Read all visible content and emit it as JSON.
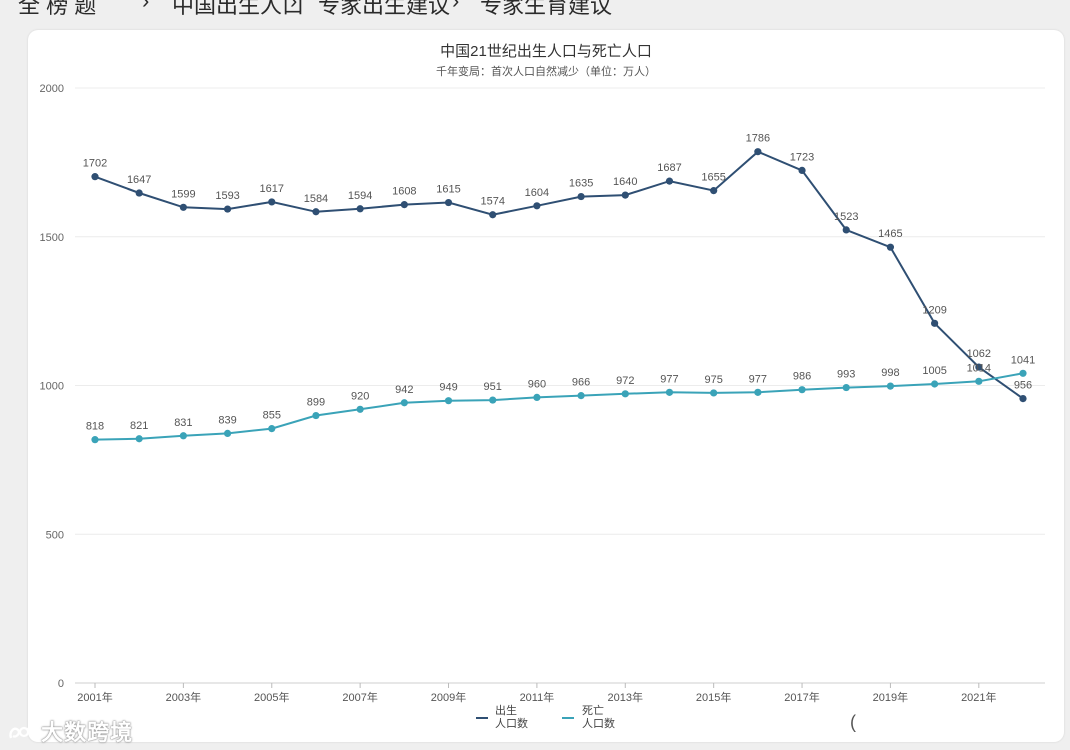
{
  "breadcrumb": {
    "items": [
      {
        "label": "全 榜 题",
        "sep": "›"
      },
      {
        "label": "中国出生人口",
        "sep": "›"
      },
      {
        "label": "专家出生建议",
        "sep": "›"
      },
      {
        "label": "专家生育建议",
        "sep": ""
      }
    ]
  },
  "chart_data": {
    "type": "line",
    "title": "中国21世纪出生人口与死亡人口",
    "subtitle": "千年变局：首次人口自然减少（单位：万人）",
    "x": [
      2001,
      2002,
      2003,
      2004,
      2005,
      2006,
      2007,
      2008,
      2009,
      2010,
      2011,
      2012,
      2013,
      2014,
      2015,
      2016,
      2017,
      2018,
      2019,
      2020,
      2021,
      2022
    ],
    "x_tick_labels": [
      "2001年",
      "2003年",
      "2005年",
      "2007年",
      "2009年",
      "2011年",
      "2013年",
      "2015年",
      "2017年",
      "2019年",
      "2021年"
    ],
    "y_ticks": [
      0,
      500,
      1000,
      1500,
      2000
    ],
    "ylim": [
      0,
      2000
    ],
    "grid": true,
    "legend_position": "bottom-center",
    "series": [
      {
        "name": "出生人口数",
        "legend_line1": "出生",
        "legend_line2": "人口数",
        "color": "#2f4f73",
        "values": [
          1702,
          1647,
          1599,
          1593,
          1617,
          1584,
          1594,
          1608,
          1615,
          1574,
          1604,
          1635,
          1640,
          1687,
          1655,
          1786,
          1723,
          1523,
          1465,
          1209,
          1062,
          956
        ]
      },
      {
        "name": "死亡人口数",
        "legend_line1": "死亡",
        "legend_line2": "人口数",
        "color": "#3aa3b8",
        "values": [
          818,
          821,
          831,
          839,
          855,
          899,
          920,
          942,
          949,
          951,
          960,
          966,
          972,
          977,
          975,
          977,
          986,
          993,
          998,
          1005,
          1014,
          1041
        ]
      }
    ]
  },
  "watermark": {
    "text": "大数跨境",
    "icon": "brand-logo-icon"
  },
  "misc": {
    "paren": "("
  }
}
